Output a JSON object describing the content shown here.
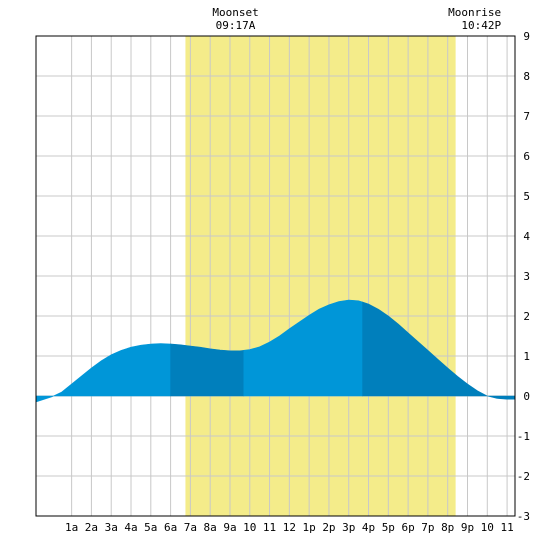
{
  "chart_data": {
    "type": "area",
    "title": "",
    "xlabel": "",
    "ylabel": "",
    "xlim": [
      -0.8,
      23.4
    ],
    "ylim": [
      -3,
      9
    ],
    "grid": true,
    "x_tick_labels": [
      {
        "x": 1,
        "label": "1a"
      },
      {
        "x": 2,
        "label": "2a"
      },
      {
        "x": 3,
        "label": "3a"
      },
      {
        "x": 4,
        "label": "4a"
      },
      {
        "x": 5,
        "label": "5a"
      },
      {
        "x": 6,
        "label": "6a"
      },
      {
        "x": 7,
        "label": "7a"
      },
      {
        "x": 8,
        "label": "8a"
      },
      {
        "x": 9,
        "label": "9a"
      },
      {
        "x": 10,
        "label": "10"
      },
      {
        "x": 11,
        "label": "11"
      },
      {
        "x": 12,
        "label": "12"
      },
      {
        "x": 13,
        "label": "1p"
      },
      {
        "x": 14,
        "label": "2p"
      },
      {
        "x": 15,
        "label": "3p"
      },
      {
        "x": 16,
        "label": "4p"
      },
      {
        "x": 17,
        "label": "5p"
      },
      {
        "x": 18,
        "label": "6p"
      },
      {
        "x": 19,
        "label": "7p"
      },
      {
        "x": 20,
        "label": "8p"
      },
      {
        "x": 21,
        "label": "9p"
      },
      {
        "x": 22,
        "label": "10"
      },
      {
        "x": 23,
        "label": "11"
      }
    ],
    "y_ticks": [
      -3,
      -2,
      -1,
      0,
      1,
      2,
      3,
      4,
      5,
      6,
      7,
      8,
      9
    ],
    "daylight": {
      "start": 6.75,
      "end": 20.4
    },
    "annotations": [
      {
        "x": 9.28,
        "label": "Moonset",
        "time": "09:17A"
      },
      {
        "x": 22.7,
        "label": "Moonrise",
        "time": "10:42P"
      }
    ],
    "tide_segments": [
      6.0,
      9.7,
      15.7
    ],
    "series": [
      {
        "x": [
          -0.8,
          0,
          0.5,
          1,
          1.5,
          2,
          2.5,
          3,
          3.5,
          4,
          4.5,
          5,
          5.5,
          6,
          6.5,
          7,
          7.5,
          8,
          8.5,
          9,
          9.5,
          10,
          10.5,
          11,
          11.5,
          12,
          12.5,
          13,
          13.5,
          14,
          14.5,
          15,
          15.5,
          16,
          16.5,
          17,
          17.5,
          18,
          18.5,
          19,
          19.5,
          20,
          20.5,
          21,
          21.5,
          22,
          22.5,
          23,
          23.4
        ],
        "values": [
          -0.15,
          -0.02,
          0.1,
          0.3,
          0.5,
          0.7,
          0.88,
          1.03,
          1.14,
          1.22,
          1.27,
          1.3,
          1.31,
          1.3,
          1.28,
          1.25,
          1.22,
          1.18,
          1.15,
          1.13,
          1.13,
          1.16,
          1.23,
          1.35,
          1.5,
          1.68,
          1.85,
          2.02,
          2.17,
          2.28,
          2.36,
          2.4,
          2.38,
          2.3,
          2.17,
          2.0,
          1.8,
          1.58,
          1.36,
          1.14,
          0.92,
          0.7,
          0.49,
          0.3,
          0.13,
          0.0,
          -0.06,
          -0.08,
          -0.08
        ]
      }
    ]
  }
}
